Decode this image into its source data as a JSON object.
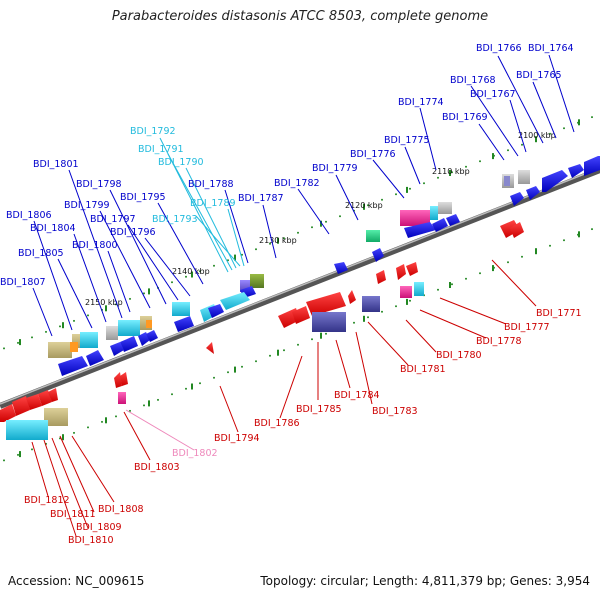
{
  "title": "Parabacteroides distasonis ATCC 8503, complete genome",
  "footer": {
    "accession": "Accession: NC_009615",
    "summary": "Topology: circular; Length: 4,811,379 bp; Genes: 3,954"
  },
  "colors": {
    "forward_label": "#0000cc",
    "reverse_label": "#cc0000",
    "cyan_label": "#22bbdd",
    "pink_label": "#ee88bb",
    "backbone": "#777777",
    "tick": "#228822"
  },
  "scale_labels": [
    "2100 kbp",
    "2110 kbp",
    "2120 kbp",
    "2130 kbp",
    "2140 kbp",
    "2150 kbp"
  ],
  "forward_labels": [
    "BDI_1764",
    "BDI_1765",
    "BDI_1766",
    "BDI_1767",
    "BDI_1768",
    "BDI_1769",
    "BDI_1774",
    "BDI_1775",
    "BDI_1776",
    "BDI_1779",
    "BDI_1782",
    "BDI_1787",
    "BDI_1788",
    "BDI_1795",
    "BDI_1796",
    "BDI_1797",
    "BDI_1798",
    "BDI_1799",
    "BDI_1800",
    "BDI_1801",
    "BDI_1804",
    "BDI_1805",
    "BDI_1806",
    "BDI_1807"
  ],
  "cyan_labels": [
    "BDI_1789",
    "BDI_1790",
    "BDI_1791",
    "BDI_1792",
    "BDI_1793"
  ],
  "reverse_labels": [
    "BDI_1771",
    "BDI_1777",
    "BDI_1778",
    "BDI_1780",
    "BDI_1781",
    "BDI_1783",
    "BDI_1784",
    "BDI_1785",
    "BDI_1786",
    "BDI_1794",
    "BDI_1803",
    "BDI_1808",
    "BDI_1809",
    "BDI_1810",
    "BDI_1811",
    "BDI_1812"
  ],
  "pink_labels": [
    "BDI_1802"
  ]
}
